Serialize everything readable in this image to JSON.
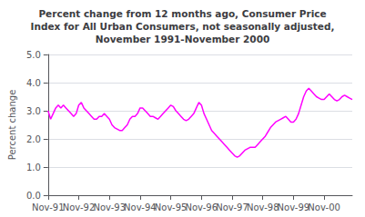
{
  "chart_data": {
    "type": "line",
    "title": "Percent change from 12 months ago, Consumer Price\nIndex for All Urban Consumers, not seasonally adjusted,\nNovember 1991-November 2000",
    "ylabel": "Percent change",
    "categories": [
      "Nov-91",
      null,
      null,
      null,
      null,
      null,
      null,
      null,
      null,
      null,
      null,
      null,
      "Nov-92",
      null,
      null,
      null,
      null,
      null,
      null,
      null,
      null,
      null,
      null,
      null,
      "Nov-93",
      null,
      null,
      null,
      null,
      null,
      null,
      null,
      null,
      null,
      null,
      null,
      "Nov-94",
      null,
      null,
      null,
      null,
      null,
      null,
      null,
      null,
      null,
      null,
      null,
      "Nov-95",
      null,
      null,
      null,
      null,
      null,
      null,
      null,
      null,
      null,
      null,
      null,
      "Nov-96",
      null,
      null,
      null,
      null,
      null,
      null,
      null,
      null,
      null,
      null,
      null,
      "Nov-97",
      null,
      null,
      null,
      null,
      null,
      null,
      null,
      null,
      null,
      null,
      null,
      "Nov-98",
      null,
      null,
      null,
      null,
      null,
      null,
      null,
      null,
      null,
      null,
      null,
      "Nov-99",
      null,
      null,
      null,
      null,
      null,
      null,
      null,
      null,
      null,
      null,
      null,
      "Nov-00",
      null,
      null,
      null,
      null,
      null,
      null,
      null,
      null,
      null,
      null,
      null
    ],
    "values": [
      3.0,
      2.7,
      2.9,
      3.1,
      3.2,
      3.1,
      3.2,
      3.1,
      3.0,
      2.9,
      2.8,
      2.9,
      3.2,
      3.3,
      3.1,
      3.0,
      2.9,
      2.8,
      2.7,
      2.7,
      2.8,
      2.8,
      2.9,
      2.8,
      2.7,
      2.5,
      2.4,
      2.35,
      2.3,
      2.3,
      2.4,
      2.5,
      2.7,
      2.8,
      2.8,
      2.9,
      3.1,
      3.1,
      3.0,
      2.9,
      2.8,
      2.8,
      2.75,
      2.7,
      2.8,
      2.9,
      3.0,
      3.1,
      3.2,
      3.15,
      3.0,
      2.9,
      2.8,
      2.7,
      2.65,
      2.7,
      2.8,
      2.9,
      3.1,
      3.3,
      3.2,
      2.9,
      2.7,
      2.5,
      2.3,
      2.2,
      2.1,
      2.0,
      1.9,
      1.8,
      1.7,
      1.6,
      1.5,
      1.4,
      1.35,
      1.4,
      1.5,
      1.6,
      1.65,
      1.7,
      1.7,
      1.7,
      1.8,
      1.9,
      2.0,
      2.1,
      2.25,
      2.4,
      2.5,
      2.6,
      2.65,
      2.7,
      2.75,
      2.8,
      2.7,
      2.6,
      2.6,
      2.7,
      2.9,
      3.2,
      3.5,
      3.7,
      3.8,
      3.7,
      3.6,
      3.5,
      3.45,
      3.4,
      3.4,
      3.5,
      3.6,
      3.5,
      3.4,
      3.35,
      3.4,
      3.5,
      3.55,
      3.5,
      3.45,
      3.4
    ],
    "color": "#FF00FF",
    "ylim": [
      0.0,
      5.0
    ],
    "yticks": [
      {
        "value": 0,
        "label": "0.0"
      },
      {
        "value": 1,
        "label": "1.0"
      },
      {
        "value": 2,
        "label": "2.0"
      },
      {
        "value": 3,
        "label": "3.0"
      },
      {
        "value": 4,
        "label": "4.0"
      },
      {
        "value": 5,
        "label": "5.0"
      }
    ],
    "grid": true
  }
}
